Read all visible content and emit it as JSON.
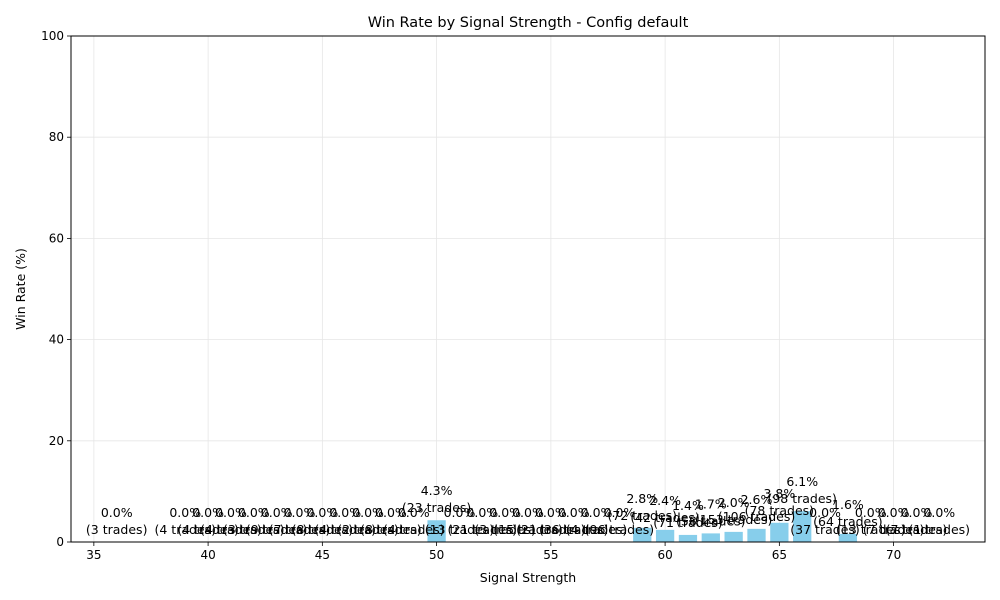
{
  "chart_data": {
    "type": "bar",
    "title": "Win Rate by Signal Strength - Config default",
    "xlabel": "Signal Strength",
    "ylabel": "Win Rate (%)",
    "xlim": [
      34,
      74
    ],
    "ylim": [
      0,
      100
    ],
    "x_ticks": [
      "35",
      "40",
      "45",
      "50",
      "55",
      "60",
      "65",
      "70"
    ],
    "y_ticks": [
      "0",
      "20",
      "40",
      "60",
      "80",
      "100"
    ],
    "grid": true,
    "bar_color": "#87ceeb",
    "bars": [
      {
        "x": 36,
        "value": 0.0,
        "label": "0.0%",
        "trades": "(3 trades)"
      },
      {
        "x": 39,
        "value": 0.0,
        "label": "0.0%",
        "trades": "(4 trades)"
      },
      {
        "x": 40,
        "value": 0.0,
        "label": "0.0%",
        "trades": "(4 trades)"
      },
      {
        "x": 41,
        "value": 0.0,
        "label": "0.0%",
        "trades": "(4 trades)"
      },
      {
        "x": 42,
        "value": 0.0,
        "label": "0.0%",
        "trades": "(3 trades)"
      },
      {
        "x": 43,
        "value": 0.0,
        "label": "0.0%",
        "trades": "(9 trades)"
      },
      {
        "x": 44,
        "value": 0.0,
        "label": "0.0%",
        "trades": "(7 trades)"
      },
      {
        "x": 45,
        "value": 0.0,
        "label": "0.0%",
        "trades": "(8 trades)"
      },
      {
        "x": 46,
        "value": 0.0,
        "label": "0.0%",
        "trades": "(4 trades)"
      },
      {
        "x": 47,
        "value": 0.0,
        "label": "0.0%",
        "trades": "(2 trades)"
      },
      {
        "x": 48,
        "value": 0.0,
        "label": "0.0%",
        "trades": "(8 trades)"
      },
      {
        "x": 49,
        "value": 0.0,
        "label": "0.0%",
        "trades": "(4 trades)"
      },
      {
        "x": 50,
        "value": 4.3,
        "label": "4.3%",
        "trades": "(23 trades)"
      },
      {
        "x": 51,
        "value": 0.0,
        "label": "0.0%",
        "trades": "(13 trades)"
      },
      {
        "x": 52,
        "value": 0.0,
        "label": "0.0%",
        "trades": "(21 trades)"
      },
      {
        "x": 53,
        "value": 0.0,
        "label": "0.0%",
        "trades": "(3 trades)"
      },
      {
        "x": 54,
        "value": 0.0,
        "label": "0.0%",
        "trades": "(15 trades)"
      },
      {
        "x": 55,
        "value": 0.0,
        "label": "0.0%",
        "trades": "(21 trades)"
      },
      {
        "x": 56,
        "value": 0.0,
        "label": "0.0%",
        "trades": "(36 trades)"
      },
      {
        "x": 57,
        "value": 0.0,
        "label": "0.0%",
        "trades": "(4 trades)"
      },
      {
        "x": 58,
        "value": 0.0,
        "label": "0.0%",
        "trades": "(96 trades)"
      },
      {
        "x": 59,
        "value": 2.8,
        "label": "2.8%",
        "trades": "(72 trades)"
      },
      {
        "x": 60,
        "value": 2.4,
        "label": "2.4%",
        "trades": "(42 trades)"
      },
      {
        "x": 61,
        "value": 1.4,
        "label": "1.4%",
        "trades": "(71 trades)"
      },
      {
        "x": 62,
        "value": 1.7,
        "label": "1.7%",
        "trades": "(58 trades)"
      },
      {
        "x": 63,
        "value": 2.0,
        "label": "2.0%",
        "trades": "(153 trades)"
      },
      {
        "x": 64,
        "value": 2.6,
        "label": "2.6%",
        "trades": "(106 trades)"
      },
      {
        "x": 65,
        "value": 3.8,
        "label": "3.8%",
        "trades": "(78 trades)"
      },
      {
        "x": 66,
        "value": 6.1,
        "label": "6.1%",
        "trades": "(98 trades)"
      },
      {
        "x": 67,
        "value": 0.0,
        "label": "0.0%",
        "trades": "(37 trades)"
      },
      {
        "x": 68,
        "value": 1.6,
        "label": "1.6%",
        "trades": "(64 trades)"
      },
      {
        "x": 69,
        "value": 0.0,
        "label": "0.0%",
        "trades": "(13 trades)"
      },
      {
        "x": 70,
        "value": 0.0,
        "label": "0.0%",
        "trades": "(7 trades)"
      },
      {
        "x": 71,
        "value": 0.0,
        "label": "0.0%",
        "trades": "(7 trades)"
      },
      {
        "x": 72,
        "value": 0.0,
        "label": "0.0%",
        "trades": "(1 trades)"
      }
    ]
  }
}
